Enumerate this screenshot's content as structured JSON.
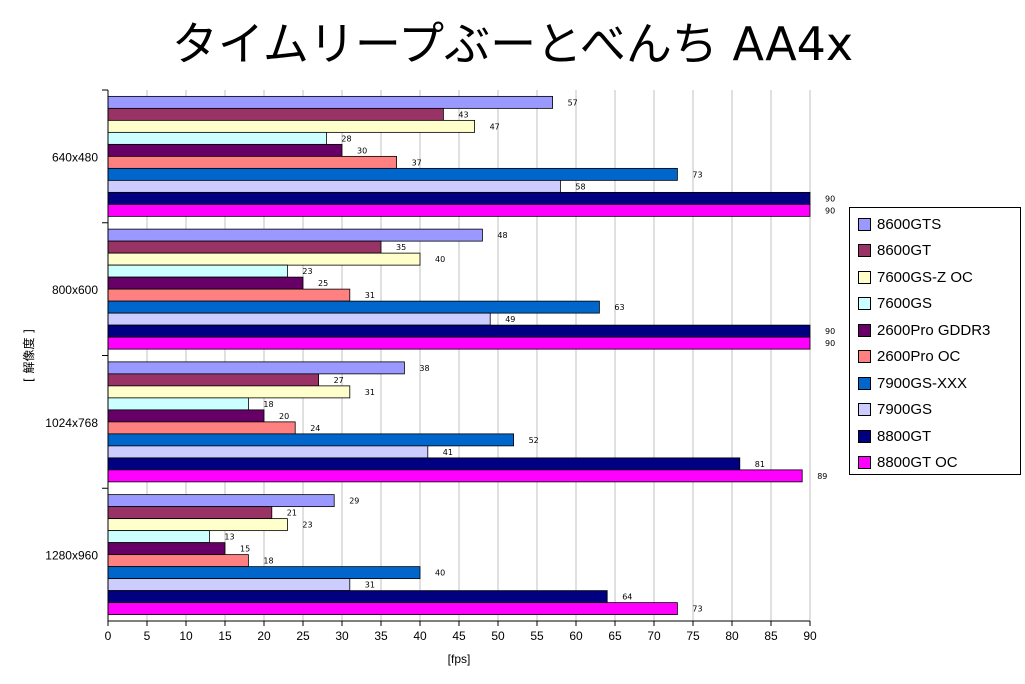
{
  "chart_data": {
    "type": "bar",
    "orientation": "horizontal",
    "title": "タイムリープぶーとべんち AA4x",
    "xlabel": "[fps]",
    "ylabel": "[ 解像度 ]",
    "xlim": [
      0,
      90
    ],
    "xticks": [
      0,
      5,
      10,
      15,
      20,
      25,
      30,
      35,
      40,
      45,
      50,
      55,
      60,
      65,
      70,
      75,
      80,
      85,
      90
    ],
    "grid": true,
    "legend_position": "right",
    "categories": [
      "640x480",
      "800x600",
      "1024x768",
      "1280x960"
    ],
    "series": [
      {
        "name": "8600GTS",
        "color": "#9999ff",
        "values": [
          57,
          48,
          38,
          29
        ]
      },
      {
        "name": "8600GT",
        "color": "#993366",
        "values": [
          43,
          35,
          27,
          21
        ]
      },
      {
        "name": "7600GS-Z OC",
        "color": "#ffffcc",
        "values": [
          47,
          40,
          31,
          23
        ]
      },
      {
        "name": "7600GS",
        "color": "#ccffff",
        "values": [
          28,
          23,
          18,
          13
        ]
      },
      {
        "name": "2600Pro GDDR3",
        "color": "#660066",
        "values": [
          30,
          25,
          20,
          15
        ]
      },
      {
        "name": "2600Pro OC",
        "color": "#ff8080",
        "values": [
          37,
          31,
          24,
          18
        ]
      },
      {
        "name": "7900GS-XXX",
        "color": "#0066cc",
        "values": [
          73,
          63,
          52,
          40
        ]
      },
      {
        "name": "7900GS",
        "color": "#ccccff",
        "values": [
          58,
          49,
          41,
          31
        ]
      },
      {
        "name": "8800GT",
        "color": "#000080",
        "values": [
          90,
          90,
          81,
          64
        ]
      },
      {
        "name": "8800GT OC",
        "color": "#ff00ff",
        "values": [
          90,
          90,
          89,
          73
        ]
      }
    ]
  }
}
